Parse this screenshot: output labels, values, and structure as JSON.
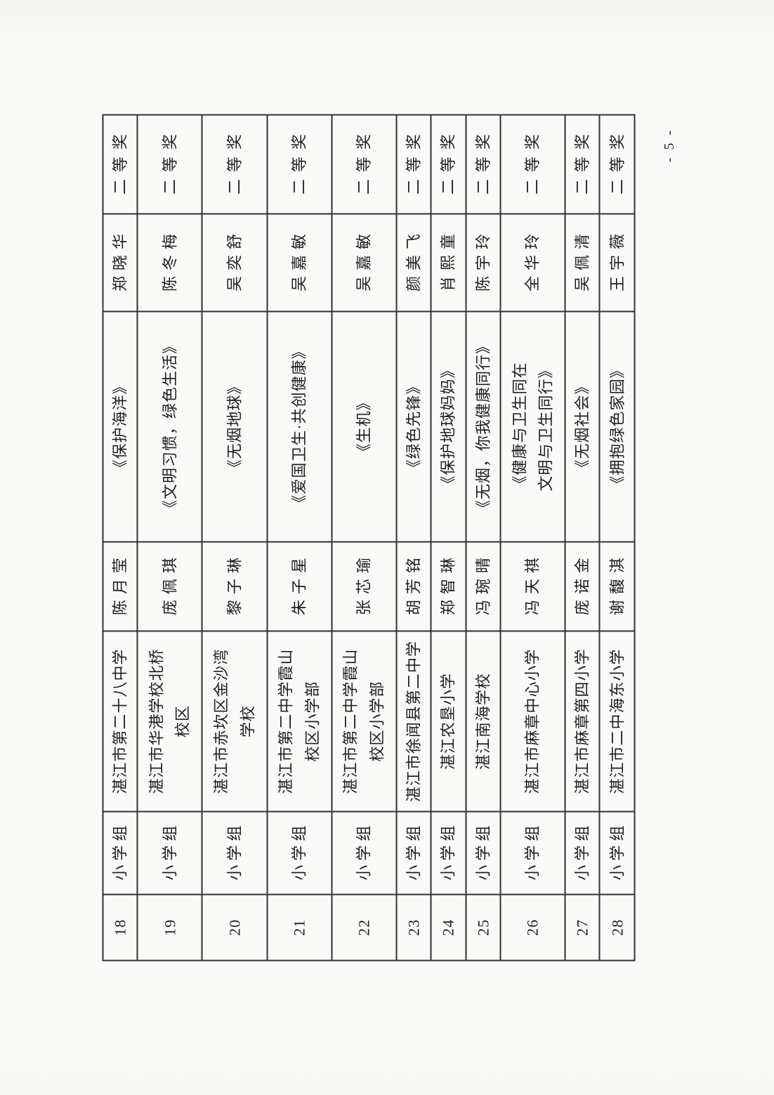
{
  "page": {
    "number_label": "- 5 -"
  },
  "table": {
    "award_default": "二等奖",
    "rows": [
      {
        "no": "18",
        "group": "小学组",
        "school": "湛江市第二十八中学",
        "author": "陈月莹",
        "title": "《保护海洋》",
        "teacher": "郑晓华",
        "award": "二等奖"
      },
      {
        "no": "19",
        "group": "小学组",
        "school": "湛江市华港学校北桥\n校区",
        "author": "庞佩琪",
        "title": "《文明习惯，绿色生活》",
        "teacher": "陈冬梅",
        "award": "二等奖"
      },
      {
        "no": "20",
        "group": "小学组",
        "school": "湛江市赤坎区金沙湾\n学校",
        "author": "黎子琳",
        "title": "《无烟地球》",
        "teacher": "吴奕舒",
        "award": "二等奖"
      },
      {
        "no": "21",
        "group": "小学组",
        "school": "湛江市第二中学霞山\n校区小学部",
        "author": "朱子星",
        "title": "《爱国卫生·共创健康》",
        "teacher": "吴嘉敏",
        "award": "二等奖"
      },
      {
        "no": "22",
        "group": "小学组",
        "school": "湛江市第二中学霞山\n校区小学部",
        "author": "张芯瑜",
        "title": "《生机》",
        "teacher": "吴嘉敏",
        "award": "二等奖"
      },
      {
        "no": "23",
        "group": "小学组",
        "school": "湛江市徐闻县第二中学",
        "author": "胡芳铭",
        "title": "《绿色先锋》",
        "teacher": "颜美飞",
        "award": "二等奖"
      },
      {
        "no": "24",
        "group": "小学组",
        "school": "湛江农垦小学",
        "author": "郑智琳",
        "title": "《保护地球妈妈》",
        "teacher": "肖熙童",
        "award": "二等奖"
      },
      {
        "no": "25",
        "group": "小学组",
        "school": "湛江南海学校",
        "author": "冯琬晴",
        "title": "《无烟，你我健康同行》",
        "teacher": "陈宇玲",
        "award": "二等奖"
      },
      {
        "no": "26",
        "group": "小学组",
        "school": "湛江市麻章中心小学",
        "author": "冯天祺",
        "title": "《健康与卫生同在\n文明与卫生同行》",
        "teacher": "全华玲",
        "award": "二等奖"
      },
      {
        "no": "27",
        "group": "小学组",
        "school": "湛江市麻章第四小学",
        "author": "庞诺金",
        "title": "《无烟社会》",
        "teacher": "吴佩清",
        "award": "二等奖"
      },
      {
        "no": "28",
        "group": "小学组",
        "school": "湛江市二中海东小学",
        "author": "谢馥淇",
        "title": "《拥抱绿色家园》",
        "teacher": "王宇薇",
        "award": "二等奖"
      }
    ]
  }
}
